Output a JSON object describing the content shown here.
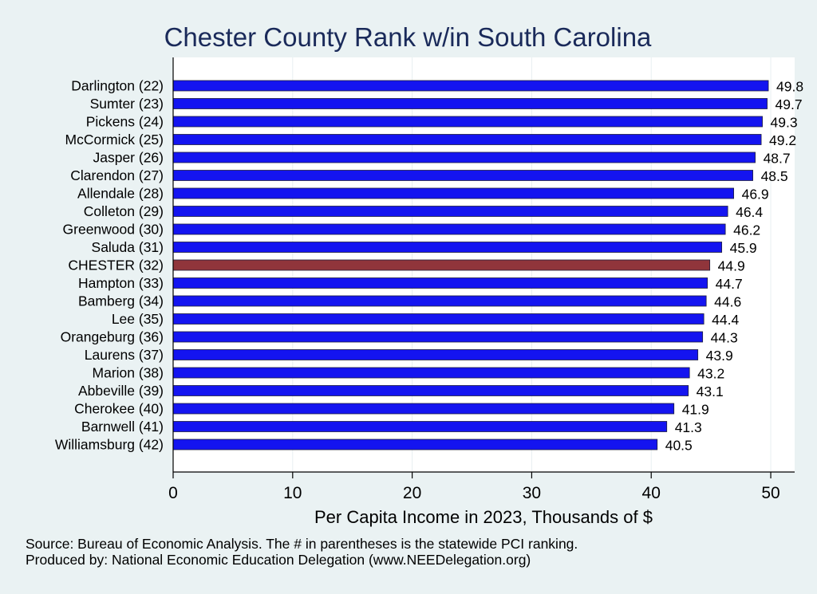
{
  "chart_data": {
    "type": "bar",
    "orientation": "horizontal",
    "title": "Chester County Rank w/in South Carolina",
    "xlabel": "Per Capita Income in 2023, Thousands of $",
    "ylabel": "",
    "xlim": [
      0,
      52
    ],
    "xticks": [
      0,
      10,
      20,
      30,
      40,
      50
    ],
    "grid": true,
    "categories": [
      "Darlington (22)",
      "Sumter (23)",
      "Pickens (24)",
      "McCormick (25)",
      "Jasper (26)",
      "Clarendon (27)",
      "Allendale (28)",
      "Colleton (29)",
      "Greenwood (30)",
      "Saluda (31)",
      "CHESTER (32)",
      "Hampton (33)",
      "Bamberg (34)",
      "Lee (35)",
      "Orangeburg (36)",
      "Laurens (37)",
      "Marion (38)",
      "Abbeville (39)",
      "Cherokee (40)",
      "Barnwell (41)",
      "Williamsburg (42)"
    ],
    "values": [
      49.8,
      49.7,
      49.3,
      49.2,
      48.7,
      48.5,
      46.9,
      46.4,
      46.2,
      45.9,
      44.9,
      44.7,
      44.6,
      44.4,
      44.3,
      43.9,
      43.2,
      43.1,
      41.9,
      41.3,
      40.5
    ],
    "value_labels": [
      "49.8",
      "49.7",
      "49.3",
      "49.2",
      "48.7",
      "48.5",
      "46.9",
      "46.4",
      "46.2",
      "45.9",
      "44.9",
      "44.7",
      "44.6",
      "44.4",
      "44.3",
      "43.9",
      "43.2",
      "43.1",
      "41.9",
      "41.3",
      "40.5"
    ],
    "highlight_index": 10,
    "colors": {
      "bar": "#1414f0",
      "highlight": "#90353b",
      "title": "#1a2a5a",
      "background": "#eaf2f3",
      "plot_background": "#ffffff",
      "grid": "#e8eff1"
    }
  },
  "footer": {
    "source": "Source: Bureau of Economic Analysis. The # in parentheses is the statewide PCI ranking.",
    "produced": "Produced by: National Economic Education Delegation (www.NEEDelegation.org)"
  }
}
